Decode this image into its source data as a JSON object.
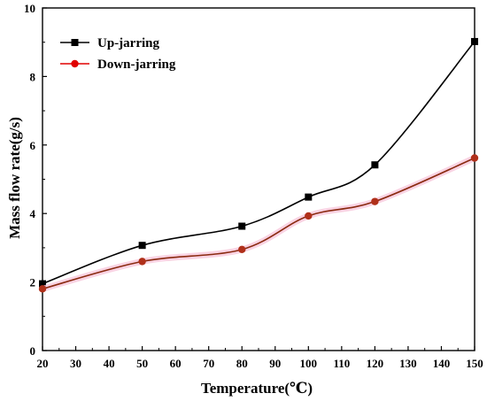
{
  "chart_data": {
    "type": "line",
    "xlabel": "Temperature(℃)",
    "ylabel": "Mass flow rate(g/s)",
    "xlim": [
      20,
      150
    ],
    "ylim": [
      0,
      10
    ],
    "x_ticks": [
      20,
      30,
      40,
      50,
      60,
      70,
      80,
      90,
      100,
      110,
      120,
      130,
      140,
      150
    ],
    "y_ticks": [
      0,
      2,
      4,
      6,
      8,
      10
    ],
    "grid": false,
    "legend_position": "top-left",
    "series": [
      {
        "name": "Up-jarring",
        "color": "#000000",
        "marker": "square",
        "x": [
          20,
          50,
          80,
          100,
          120,
          150
        ],
        "y": [
          1.95,
          3.07,
          3.63,
          4.48,
          5.42,
          9.02
        ]
      },
      {
        "name": "Down-jarring",
        "color": "#e00000",
        "marker": "circle",
        "x": [
          20,
          50,
          80,
          100,
          120,
          150
        ],
        "y": [
          1.8,
          2.6,
          2.95,
          3.93,
          4.35,
          5.62
        ]
      }
    ]
  }
}
